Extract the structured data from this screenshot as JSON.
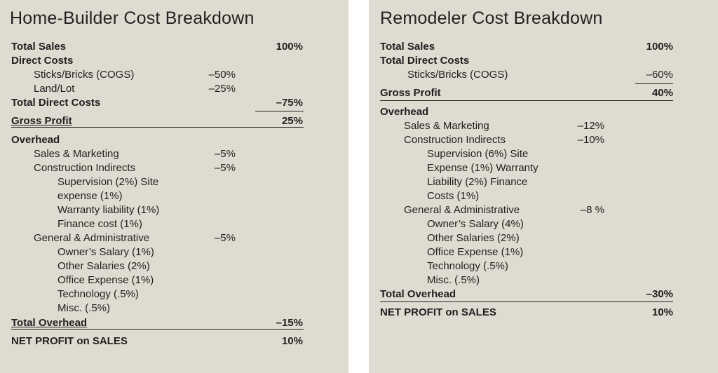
{
  "left": {
    "title": "Home-Builder Cost  Breakdown",
    "rows": [
      {
        "label": "Total Sales",
        "col2": "100%"
      },
      {
        "label": "Direct Costs"
      },
      {
        "label": "Sticks/Bricks (COGS)",
        "col1": "–50%"
      },
      {
        "label": "Land/Lot",
        "col1": "–25%"
      },
      {
        "label": "Total Direct Costs",
        "col2": "–75%"
      },
      {
        "label": "Gross Profit",
        "col2": "25%"
      },
      {
        "label": "Overhead"
      },
      {
        "label": "Sales & Marketing",
        "col1": "–5%"
      },
      {
        "label": "Construction Indirects",
        "col1": "–5%"
      },
      {
        "label": "Supervision (2%) Site"
      },
      {
        "label": "expense  (1%)"
      },
      {
        "label": "Warranty liability (1%)"
      },
      {
        "label": "Finance  cost (1%)"
      },
      {
        "label": "General  & Administrative",
        "col1": "–5%"
      },
      {
        "label": "Owner’s Salary  (1%)"
      },
      {
        "label": "Other Salaries (2%)"
      },
      {
        "label": "Office Expense  (1%)"
      },
      {
        "label": "Technology (.5%)"
      },
      {
        "label": "Misc. (.5%)"
      },
      {
        "label": "Total Overhead",
        "col2": "–15%"
      },
      {
        "label": "NET PROFIT on SALES",
        "col2": "10%"
      }
    ]
  },
  "right": {
    "title": "Remodeler Cost  Breakdown",
    "rows": [
      {
        "label": "Total Sales",
        "col2": "100%"
      },
      {
        "label": "Total  Direct  Costs"
      },
      {
        "label": "Sticks/Bricks (COGS)",
        "col2": "–60%"
      },
      {
        "label": "Gross Profit",
        "col2": "40%"
      },
      {
        "label": "Overhead"
      },
      {
        "label": "Sales & Marketing",
        "col1": "–12%"
      },
      {
        "label": "Construction Indirects",
        "col1": "–10%"
      },
      {
        "label": "Supervision (6%) Site"
      },
      {
        "label": "Expense  (1%) Warranty"
      },
      {
        "label": "Liability (2%) Finance"
      },
      {
        "label": "Costs  (1%)"
      },
      {
        "label": "General  & Administrative",
        "col1": "–8 %"
      },
      {
        "label": "Owner’s Salary (4%)"
      },
      {
        "label": "Other Salaries  (2%)"
      },
      {
        "label": "Office Expense  (1%)"
      },
      {
        "label": "Technology (.5%)"
      },
      {
        "label": "Misc.  (.5%)"
      },
      {
        "label": "Total  Overhead",
        "col2": "–30%"
      },
      {
        "label": "NET PROFIT  on SALES",
        "col2": "10%"
      }
    ]
  }
}
